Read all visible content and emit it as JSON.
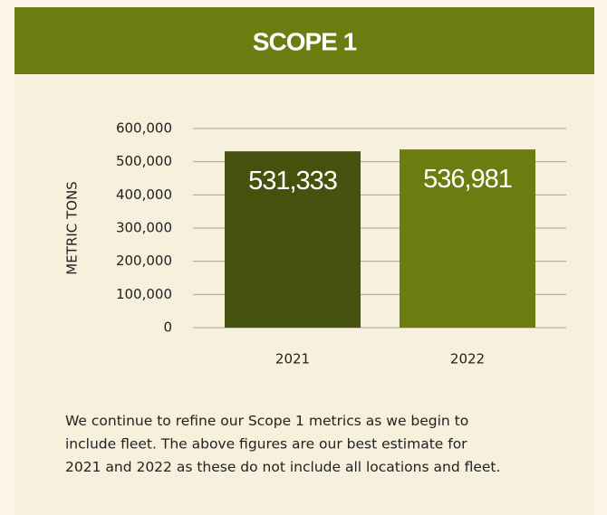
{
  "chart_data": {
    "type": "bar",
    "title": "SCOPE 1",
    "ylabel": "METRIC TONS",
    "categories": [
      "2021",
      "2022"
    ],
    "values": [
      531333,
      536981
    ],
    "value_labels": [
      "531,333",
      "536,981"
    ],
    "colors": [
      "#44520e",
      "#6b7d10"
    ],
    "ylim": [
      0,
      600000
    ],
    "yticks": [
      0,
      {
        "value": 100000,
        "label": "100,000"
      },
      {
        "value": 200000,
        "label": "200,000"
      },
      {
        "value": 300000,
        "label": "300,000"
      },
      {
        "value": 400000,
        "label": "400,000"
      },
      {
        "value": 500000,
        "label": "500,000"
      },
      {
        "value": 600000,
        "label": "600,000"
      }
    ],
    "grid": true,
    "caption_lines": [
      "We continue to refine our Scope 1 metrics as we begin to",
      "include fleet. The above figures are our best estimate for",
      "2021 and 2022 as these do not include all locations and fleet."
    ]
  }
}
